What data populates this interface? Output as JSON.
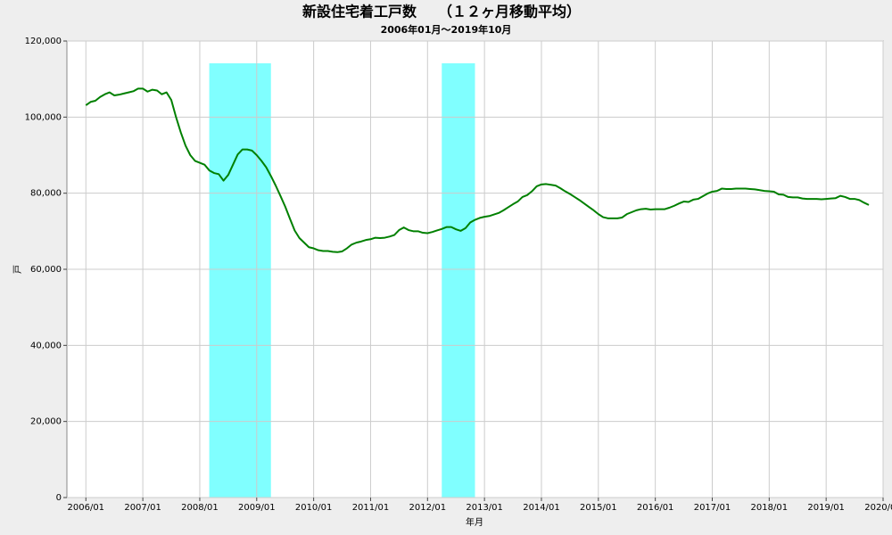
{
  "chart_data": {
    "type": "line",
    "title": "新設住宅着工戸数　　（１２ヶ月移動平均）",
    "subtitle": "2006年01月～2019年10月",
    "x_label": "年月",
    "y_label": "戸",
    "color": "#008000",
    "shade_color": "#80ffff",
    "shaded_periods": [
      {
        "start": "2008/03",
        "end": "2009/04"
      },
      {
        "start": "2012/04",
        "end": "2012/11"
      }
    ],
    "grid": true,
    "xlim": [
      "2005/09",
      "2020/01"
    ],
    "xticks": [
      "2006/01",
      "2007/01",
      "2008/01",
      "2009/01",
      "2010/01",
      "2011/01",
      "2012/01",
      "2013/01",
      "2014/01",
      "2015/01",
      "2016/01",
      "2017/01",
      "2018/01",
      "2019/01",
      "2020/01"
    ],
    "ylim": [
      0,
      120000
    ],
    "yticks": [
      0,
      {
        "value": 20000,
        "label": "20,000"
      },
      {
        "value": 40000,
        "label": "40,000"
      },
      {
        "value": 60000,
        "label": "60,000"
      },
      {
        "value": 80000,
        "label": "80,000"
      },
      {
        "value": 100000,
        "label": "100,000"
      },
      {
        "value": 120000,
        "label": "120,000"
      }
    ],
    "x": [
      "2006/01",
      "2006/02",
      "2006/03",
      "2006/04",
      "2006/05",
      "2006/06",
      "2006/07",
      "2006/08",
      "2006/09",
      "2006/10",
      "2006/11",
      "2006/12",
      "2007/01",
      "2007/02",
      "2007/03",
      "2007/04",
      "2007/05",
      "2007/06",
      "2007/07",
      "2007/08",
      "2007/09",
      "2007/10",
      "2007/11",
      "2007/12",
      "2008/01",
      "2008/02",
      "2008/03",
      "2008/04",
      "2008/05",
      "2008/06",
      "2008/07",
      "2008/08",
      "2008/09",
      "2008/10",
      "2008/11",
      "2008/12",
      "2009/01",
      "2009/02",
      "2009/03",
      "2009/04",
      "2009/05",
      "2009/06",
      "2009/07",
      "2009/08",
      "2009/09",
      "2009/10",
      "2009/11",
      "2009/12",
      "2010/01",
      "2010/02",
      "2010/03",
      "2010/04",
      "2010/05",
      "2010/06",
      "2010/07",
      "2010/08",
      "2010/09",
      "2010/10",
      "2010/11",
      "2010/12",
      "2011/01",
      "2011/02",
      "2011/03",
      "2011/04",
      "2011/05",
      "2011/06",
      "2011/07",
      "2011/08",
      "2011/09",
      "2011/10",
      "2011/11",
      "2011/12",
      "2012/01",
      "2012/02",
      "2012/03",
      "2012/04",
      "2012/05",
      "2012/06",
      "2012/07",
      "2012/08",
      "2012/09",
      "2012/10",
      "2012/11",
      "2012/12",
      "2013/01",
      "2013/02",
      "2013/03",
      "2013/04",
      "2013/05",
      "2013/06",
      "2013/07",
      "2013/08",
      "2013/09",
      "2013/10",
      "2013/11",
      "2013/12",
      "2014/01",
      "2014/02",
      "2014/03",
      "2014/04",
      "2014/05",
      "2014/06",
      "2014/07",
      "2014/08",
      "2014/09",
      "2014/10",
      "2014/11",
      "2014/12",
      "2015/01",
      "2015/02",
      "2015/03",
      "2015/04",
      "2015/05",
      "2015/06",
      "2015/07",
      "2015/08",
      "2015/09",
      "2015/10",
      "2015/11",
      "2015/12",
      "2016/01",
      "2016/02",
      "2016/03",
      "2016/04",
      "2016/05",
      "2016/06",
      "2016/07",
      "2016/08",
      "2016/09",
      "2016/10",
      "2016/11",
      "2016/12",
      "2017/01",
      "2017/02",
      "2017/03",
      "2017/04",
      "2017/05",
      "2017/06",
      "2017/07",
      "2017/08",
      "2017/09",
      "2017/10",
      "2017/11",
      "2017/12",
      "2018/01",
      "2018/02",
      "2018/03",
      "2018/04",
      "2018/05",
      "2018/06",
      "2018/07",
      "2018/08",
      "2018/09",
      "2018/10",
      "2018/11",
      "2018/12",
      "2019/01",
      "2019/02",
      "2019/03",
      "2019/04",
      "2019/05",
      "2019/06",
      "2019/07",
      "2019/08",
      "2019/09",
      "2019/10"
    ],
    "values": [
      103100,
      104000,
      104300,
      105300,
      106000,
      106500,
      105700,
      105900,
      106200,
      106500,
      106800,
      107500,
      107500,
      106700,
      107200,
      107000,
      106000,
      106500,
      104500,
      100000,
      96000,
      92500,
      90000,
      88500,
      88000,
      87500,
      86000,
      85300,
      85000,
      83300,
      84800,
      87500,
      90200,
      91500,
      91500,
      91200,
      90000,
      88500,
      86800,
      84500,
      82000,
      79300,
      76500,
      73300,
      70200,
      68200,
      67000,
      65800,
      65500,
      65000,
      64800,
      64800,
      64600,
      64500,
      64700,
      65500,
      66500,
      67000,
      67300,
      67700,
      67900,
      68300,
      68200,
      68300,
      68600,
      69000,
      70300,
      71000,
      70300,
      70000,
      70000,
      69600,
      69500,
      69800,
      70200,
      70600,
      71100,
      71100,
      70500,
      70100,
      70800,
      72300,
      73000,
      73500,
      73800,
      74000,
      74400,
      74800,
      75500,
      76300,
      77100,
      77800,
      79000,
      79500,
      80500,
      81800,
      82300,
      82400,
      82200,
      82000,
      81300,
      80500,
      79800,
      79000,
      78200,
      77300,
      76400,
      75500,
      74500,
      73700,
      73400,
      73400,
      73400,
      73600,
      74500,
      75000,
      75500,
      75800,
      75900,
      75700,
      75800,
      75800,
      75800,
      76200,
      76700,
      77300,
      77800,
      77700,
      78300,
      78500,
      79200,
      79900,
      80400,
      80600,
      81200,
      81100,
      81100,
      81200,
      81200,
      81200,
      81100,
      81000,
      80800,
      80600,
      80500,
      80400,
      79700,
      79600,
      79000,
      78900,
      78900,
      78600,
      78500,
      78500,
      78500,
      78400,
      78500,
      78600,
      78700,
      79300,
      79000,
      78500,
      78500,
      78200,
      77500,
      76900
    ]
  }
}
